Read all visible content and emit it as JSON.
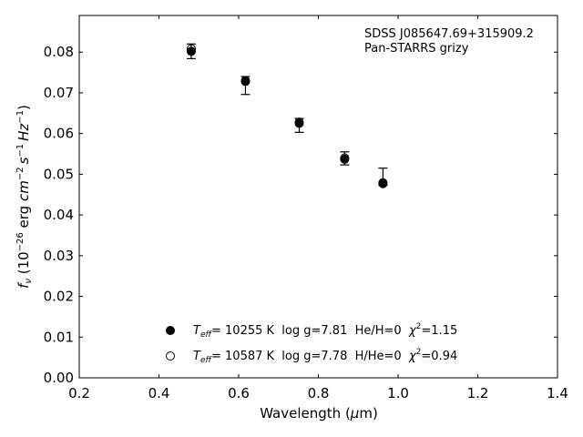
{
  "chart_data": {
    "type": "scatter",
    "xlabel": {
      "main": "Wavelength (",
      "sym": "μ",
      "tail": "m)"
    },
    "ylabel": {
      "f": "f",
      "nu": "ν",
      "a": " (10",
      "exp1": "−26",
      "b": " erg ",
      "cm": "cm",
      "exp2": "−2",
      "s": "s",
      "exp3": "−1",
      "hz": "Hz",
      "exp4": "−1",
      "close": ")"
    },
    "xlim": [
      0.2,
      1.4
    ],
    "ylim": [
      0.0,
      0.089
    ],
    "xticks": [
      0.2,
      0.4,
      0.6,
      0.8,
      1.0,
      1.2,
      1.4
    ],
    "xtick_labels": [
      "0.2",
      "0.4",
      "0.6",
      "0.8",
      "1.0",
      "1.2",
      "1.4"
    ],
    "yticks": [
      0.0,
      0.01,
      0.02,
      0.03,
      0.04,
      0.05,
      0.06,
      0.07,
      0.08
    ],
    "ytick_labels": [
      "0.00",
      "0.01",
      "0.02",
      "0.03",
      "0.04",
      "0.05",
      "0.06",
      "0.07",
      "0.08"
    ],
    "annotation": [
      "SDSS J085647.69+315909.2",
      "Pan-STARRS grizy"
    ],
    "observed": {
      "x": [
        0.481,
        0.617,
        0.752,
        0.866,
        0.962
      ],
      "y": [
        0.0802,
        0.0718,
        0.062,
        0.0539,
        0.0494
      ],
      "err": [
        0.0018,
        0.0022,
        0.0017,
        0.0016,
        0.0021
      ]
    },
    "series": [
      {
        "marker": "filled",
        "x": [
          0.481,
          0.617,
          0.752,
          0.866,
          0.962
        ],
        "y": [
          0.0802,
          0.0728,
          0.0625,
          0.0537,
          0.0477
        ]
      },
      {
        "marker": "open",
        "x": [
          0.481,
          0.617,
          0.752,
          0.866,
          0.962
        ],
        "y": [
          0.0808,
          0.073,
          0.0628,
          0.054,
          0.0479
        ]
      }
    ],
    "legend": [
      {
        "marker": "filled",
        "t": "T",
        "sub": "eff",
        "text": "= 10255 K  log g=7.81  He/H=0  ",
        "chi": "χ",
        "sup": "2",
        "tail": "=1.15"
      },
      {
        "marker": "open",
        "t": "T",
        "sub": "eff",
        "text": "= 10587 K  log g=7.78  H/He=0  ",
        "chi": "χ",
        "sup": "2",
        "tail": "=0.94"
      }
    ],
    "legend_position": "lower-center",
    "grid": false
  }
}
